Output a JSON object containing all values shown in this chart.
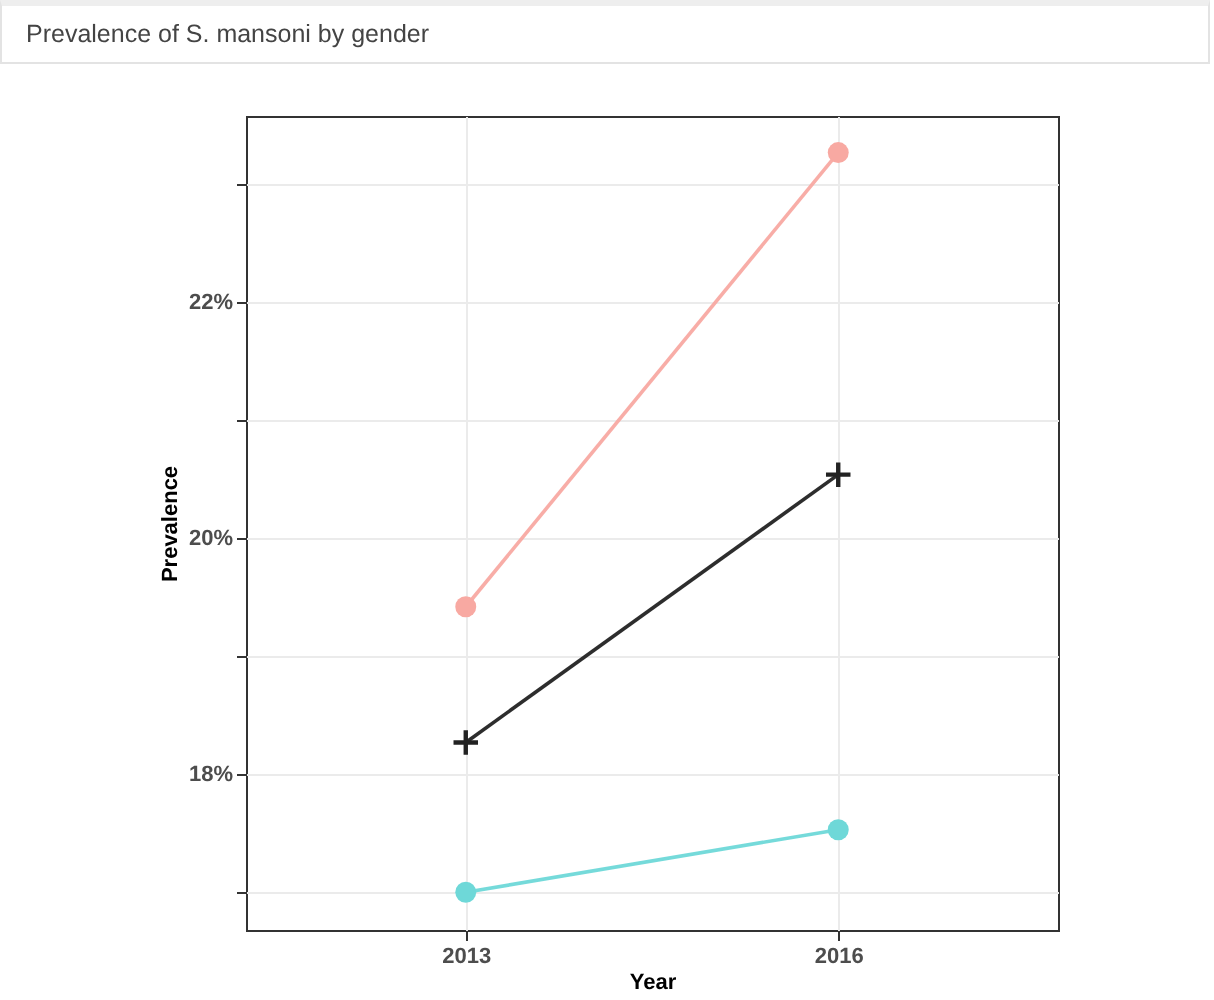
{
  "chart_data": {
    "type": "line",
    "title": "Prevalence of S. mansoni by gender",
    "xlabel": "Year",
    "ylabel": "Prevalence",
    "categories": [
      "2013",
      "2016"
    ],
    "series": [
      {
        "color": "#f8a9a2",
        "marker": "circle",
        "values": [
          19.42,
          23.27
        ]
      },
      {
        "color": "#222222",
        "marker": "cross",
        "values": [
          18.27,
          20.54
        ]
      },
      {
        "color": "#6ed8d8",
        "marker": "circle",
        "values": [
          17.0,
          17.53
        ]
      }
    ],
    "ylim": [
      16.68,
      23.58
    ],
    "yticks": [
      {
        "value": 17,
        "label": null
      },
      {
        "value": 18,
        "label": "18%"
      },
      {
        "value": 19,
        "label": null
      },
      {
        "value": 20,
        "label": "20%"
      },
      {
        "value": 21,
        "label": null
      },
      {
        "value": 22,
        "label": "22%"
      },
      {
        "value": 23,
        "label": null
      }
    ],
    "grid": true
  }
}
